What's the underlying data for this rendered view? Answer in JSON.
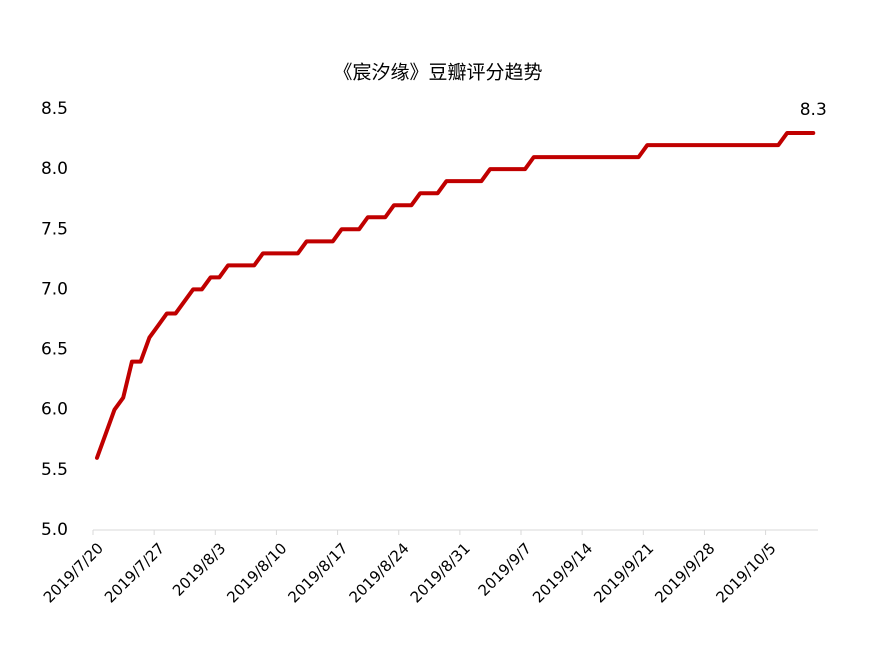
{
  "chart_data": {
    "type": "line",
    "title": "《宸汐缘》豆瓣评分趋势",
    "categories": [
      "2019/7/20",
      null,
      null,
      null,
      null,
      null,
      null,
      "2019/7/27",
      null,
      null,
      null,
      null,
      null,
      null,
      "2019/8/3",
      null,
      null,
      null,
      null,
      null,
      null,
      "2019/8/10",
      null,
      null,
      null,
      null,
      null,
      null,
      "2019/8/17",
      null,
      null,
      null,
      null,
      null,
      null,
      "2019/8/24",
      null,
      null,
      null,
      null,
      null,
      null,
      "2019/8/31",
      null,
      null,
      null,
      null,
      null,
      null,
      "2019/9/7",
      null,
      null,
      null,
      null,
      null,
      null,
      "2019/9/14",
      null,
      null,
      null,
      null,
      null,
      null,
      "2019/9/21",
      null,
      null,
      null,
      null,
      null,
      null,
      "2019/9/28",
      null,
      null,
      null,
      null,
      null,
      null,
      "2019/10/5",
      null,
      null,
      null,
      null,
      null
    ],
    "values": [
      5.6,
      5.8,
      6.0,
      6.1,
      6.4,
      6.4,
      6.6,
      6.7,
      6.8,
      6.8,
      6.9,
      7.0,
      7.0,
      7.1,
      7.1,
      7.2,
      7.2,
      7.2,
      7.2,
      7.3,
      7.3,
      7.3,
      7.3,
      7.3,
      7.4,
      7.4,
      7.4,
      7.4,
      7.5,
      7.5,
      7.5,
      7.6,
      7.6,
      7.6,
      7.7,
      7.7,
      7.7,
      7.8,
      7.8,
      7.8,
      7.9,
      7.9,
      7.9,
      7.9,
      7.9,
      8.0,
      8.0,
      8.0,
      8.0,
      8.0,
      8.1,
      8.1,
      8.1,
      8.1,
      8.1,
      8.1,
      8.1,
      8.1,
      8.1,
      8.1,
      8.1,
      8.1,
      8.1,
      8.2,
      8.2,
      8.2,
      8.2,
      8.2,
      8.2,
      8.2,
      8.2,
      8.2,
      8.2,
      8.2,
      8.2,
      8.2,
      8.2,
      8.2,
      8.2,
      8.3,
      8.3,
      8.3,
      8.3
    ],
    "color": "#c00000",
    "ylim": [
      5.0,
      8.5
    ],
    "yticks": [
      {
        "value": 5.0,
        "label": "5.0"
      },
      {
        "value": 5.5,
        "label": "5.5"
      },
      {
        "value": 6.0,
        "label": "6.0"
      },
      {
        "value": 6.5,
        "label": "6.5"
      },
      {
        "value": 7.0,
        "label": "7.0"
      },
      {
        "value": 7.5,
        "label": "7.5"
      },
      {
        "value": 8.0,
        "label": "8.0"
      },
      {
        "value": 8.5,
        "label": "8.5"
      }
    ],
    "grid": false
  }
}
